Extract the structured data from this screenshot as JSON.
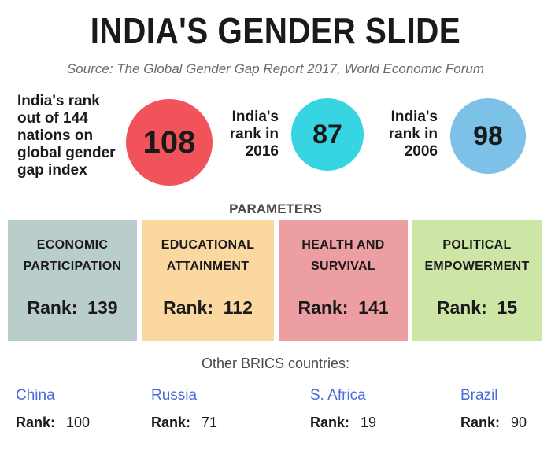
{
  "header": {
    "title": "INDIA'S GENDER SLIDE",
    "source": "Source: The Global Gender Gap Report 2017, World Economic Forum"
  },
  "stats": [
    {
      "label": "India's rank\nout of 144\nnations on\nglobal gender\ngap index",
      "value": "108",
      "color": "#f2525a"
    },
    {
      "label": "India's\nrank in\n2016",
      "value": "87",
      "color": "#37d4e2"
    },
    {
      "label": "India's\nrank in\n2006",
      "value": "98",
      "color": "#7cc2e8"
    }
  ],
  "parameters": {
    "heading": "PARAMETERS",
    "items": [
      {
        "label": "ECONOMIC\nPARTICIPATION",
        "rank_label": "Rank:",
        "rank": "139",
        "color": "#b9cdcb"
      },
      {
        "label": "EDUCATIONAL\nATTAINMENT",
        "rank_label": "Rank:",
        "rank": "112",
        "color": "#fad8a0"
      },
      {
        "label": "HEALTH AND\nSURVIVAL",
        "rank_label": "Rank:",
        "rank": "141",
        "color": "#ec9ea2"
      },
      {
        "label": "POLITICAL\nEMPOWERMENT",
        "rank_label": "Rank:",
        "rank": "15",
        "color": "#cde6a6"
      }
    ]
  },
  "brics": {
    "heading": "Other BRICS countries:",
    "countries": [
      {
        "name": "China",
        "rank_label": "Rank:",
        "rank": "100"
      },
      {
        "name": "Russia",
        "rank_label": "Rank:",
        "rank": "71"
      },
      {
        "name": "S. Africa",
        "rank_label": "Rank:",
        "rank": "19"
      },
      {
        "name": "Brazil",
        "rank_label": "Rank:",
        "rank": "90"
      }
    ]
  }
}
